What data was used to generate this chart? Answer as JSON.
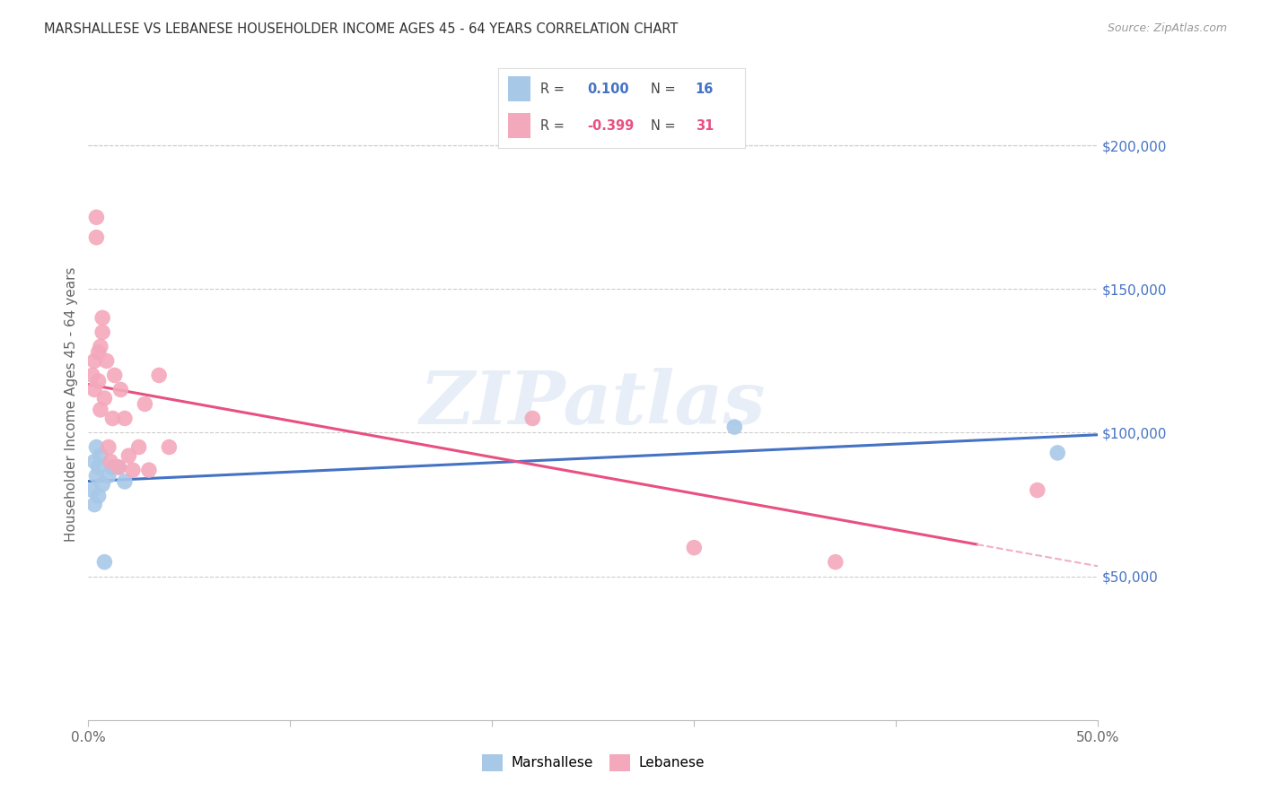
{
  "title": "MARSHALLESE VS LEBANESE HOUSEHOLDER INCOME AGES 45 - 64 YEARS CORRELATION CHART",
  "source": "Source: ZipAtlas.com",
  "ylabel": "Householder Income Ages 45 - 64 years",
  "xlim": [
    0.0,
    0.5
  ],
  "ylim": [
    0,
    220000
  ],
  "xtick_positions": [
    0.0,
    0.1,
    0.2,
    0.3,
    0.4,
    0.5
  ],
  "xticklabels": [
    "0.0%",
    "",
    "",
    "",
    "",
    "50.0%"
  ],
  "yticks_right": [
    50000,
    100000,
    150000,
    200000
  ],
  "ytick_labels_right": [
    "$50,000",
    "$100,000",
    "$150,000",
    "$200,000"
  ],
  "grid_color": "#cccccc",
  "background_color": "#ffffff",
  "marshallese_color": "#a8c8e8",
  "lebanese_color": "#f4a8bc",
  "marshallese_line_color": "#4472c4",
  "lebanese_line_color": "#e85080",
  "lebanese_line_dashed_color": "#f0b0c0",
  "watermark": "ZIPatlas",
  "legend_r_marshallese": "0.100",
  "legend_n_marshallese": "16",
  "legend_r_lebanese": "-0.399",
  "legend_n_lebanese": "31",
  "marsh_x": [
    0.002,
    0.003,
    0.003,
    0.004,
    0.004,
    0.005,
    0.005,
    0.006,
    0.007,
    0.008,
    0.01,
    0.012,
    0.015,
    0.018,
    0.32,
    0.48
  ],
  "marsh_y": [
    80000,
    90000,
    75000,
    95000,
    85000,
    78000,
    88000,
    92000,
    82000,
    55000,
    85000,
    88000,
    88000,
    83000,
    102000,
    93000
  ],
  "leb_x": [
    0.002,
    0.003,
    0.003,
    0.004,
    0.004,
    0.005,
    0.005,
    0.006,
    0.006,
    0.007,
    0.007,
    0.008,
    0.009,
    0.01,
    0.011,
    0.012,
    0.013,
    0.015,
    0.016,
    0.018,
    0.02,
    0.022,
    0.025,
    0.028,
    0.03,
    0.035,
    0.04,
    0.22,
    0.3,
    0.37,
    0.47
  ],
  "leb_y": [
    120000,
    125000,
    115000,
    175000,
    168000,
    128000,
    118000,
    130000,
    108000,
    140000,
    135000,
    112000,
    125000,
    95000,
    90000,
    105000,
    120000,
    88000,
    115000,
    105000,
    92000,
    87000,
    95000,
    110000,
    87000,
    120000,
    95000,
    105000,
    60000,
    55000,
    80000
  ],
  "line_x_start": 0.0,
  "line_x_end_solid": 0.44,
  "line_x_end_dashed": 0.5
}
